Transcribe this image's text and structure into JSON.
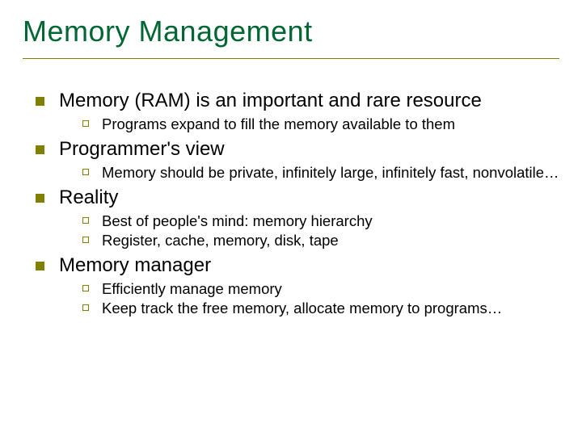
{
  "slide": {
    "title": "Memory Management",
    "title_color": "#006633",
    "title_fontsize": 36,
    "rule_color": "#808000",
    "bullet_color_l1": "#808000",
    "bullet_color_l2": "#808000",
    "body_color": "#000000",
    "body_fontsize_l1": 24,
    "body_fontsize_l2": 18.5,
    "background_color": "#ffffff",
    "items": [
      {
        "text": "Memory (RAM) is an important and rare resource",
        "sub": [
          "Programs expand to fill the memory available to them"
        ]
      },
      {
        "text": "Programmer's view",
        "sub": [
          "Memory should be private, infinitely large, infinitely fast, nonvolatile…"
        ]
      },
      {
        "text": "Reality",
        "sub": [
          "Best of people's mind: memory hierarchy",
          "Register, cache, memory, disk, tape"
        ]
      },
      {
        "text": "Memory manager",
        "sub": [
          "Efficiently manage memory",
          "Keep track the free memory, allocate memory to programs…"
        ]
      }
    ]
  }
}
